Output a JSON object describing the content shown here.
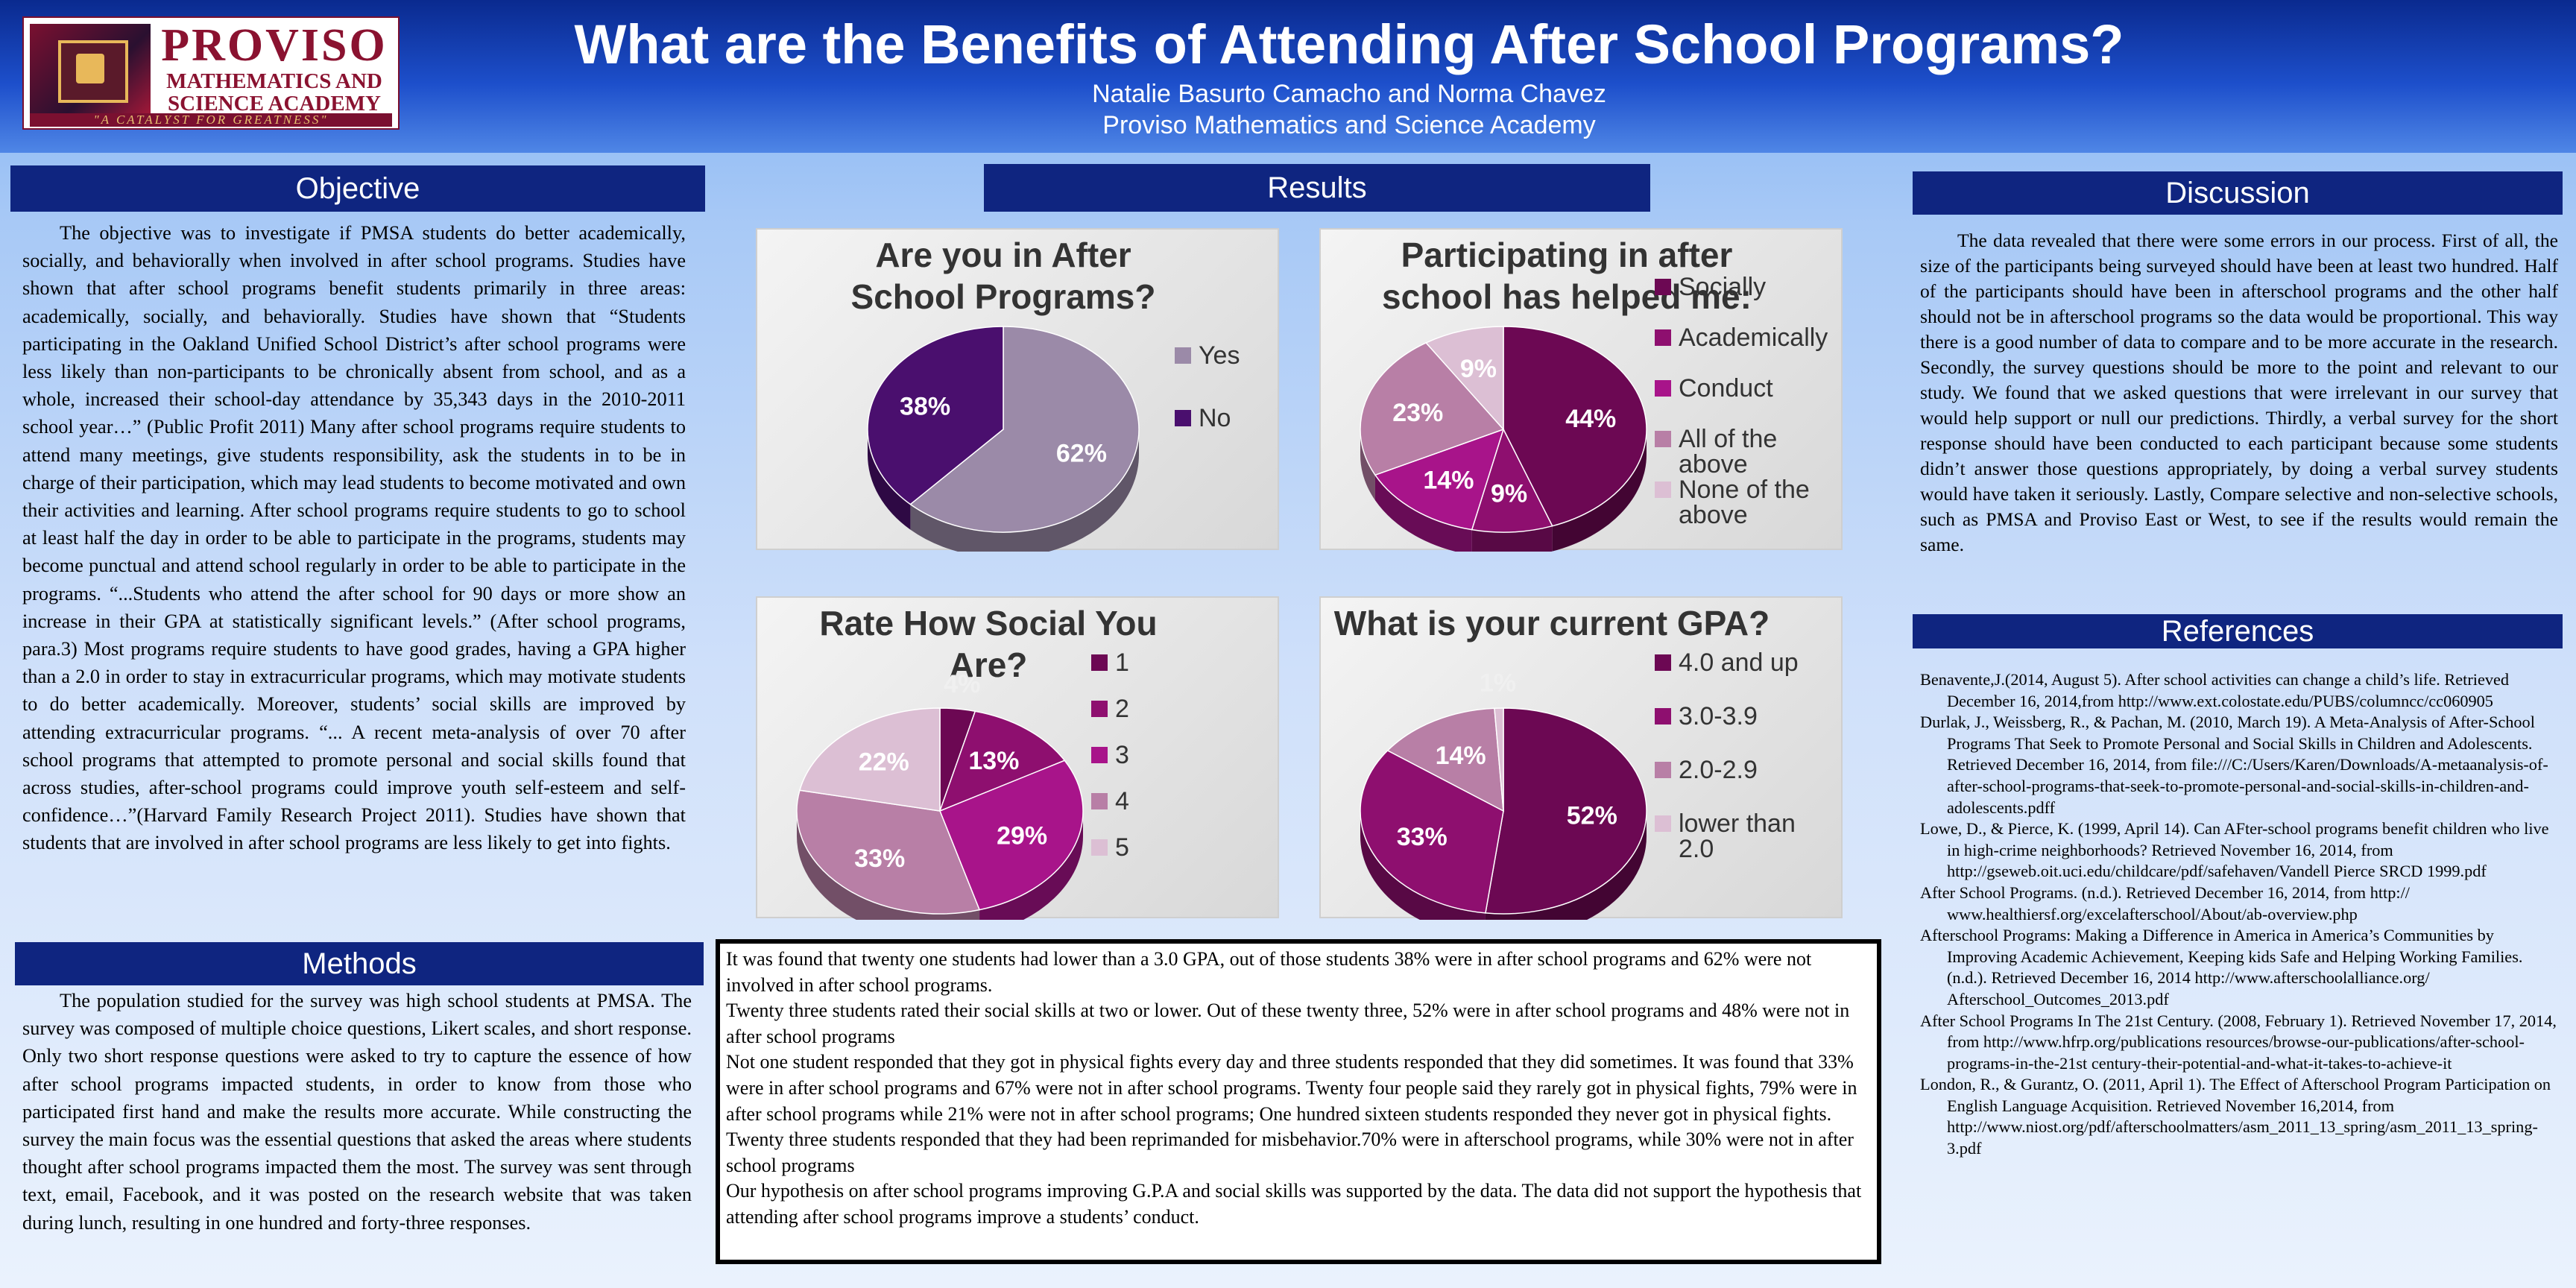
{
  "header": {
    "title": "What are the Benefits of Attending After School Programs?",
    "authors": "Natalie Basurto Camacho and Norma Chavez",
    "affiliation": "Proviso Mathematics and Science Academy",
    "logo": {
      "name1": "PROVISO",
      "name2": "MATHEMATICS AND",
      "name3": "SCIENCE ACADEMY",
      "tagline": "\"A CATALYST FOR GREATNESS\""
    }
  },
  "objective": {
    "heading": "Objective",
    "text": "The objective was to investigate if PMSA students do better academically, socially, and behaviorally when involved in after school programs. Studies have shown that after school programs benefit students primarily in three areas: academically, socially, and behaviorally. Studies have shown that “Students participating in the Oakland Unified School District’s after school programs were less likely than non-participants to be chronically absent from school, and as a whole, increased their school-day attendance by 35,343 days in the 2010-2011 school year…” (Public Profit 2011)  Many after school programs require students to attend many meetings, give students responsibility, ask the students in to be in charge of their participation, which may lead students to become motivated and own their activities and learning. After school programs require students to go to school at least half the day in order to be able to participate in the programs, students may become punctual and attend school regularly in order to be able to participate in the programs. “...Students who attend the after school for 90 days or more show an increase in their GPA at statistically significant levels.” (After school programs, para.3) Most programs require students to have good grades, having a GPA higher than a 2.0 in order to stay in extracurricular programs, which may motivate students to do better academically. Moreover, students’ social skills are improved by attending extracurricular programs. “... A recent meta-analysis of over 70 after school programs that attempted to promote personal and social skills found that across studies, after-school programs could improve youth self-esteem and self-confidence…”(Harvard Family Research Project 2011). Studies have shown that students that are involved in after school programs are less likely to get into fights."
  },
  "methods": {
    "heading": "Methods",
    "text": "The population studied for the survey was high school students at PMSA. The survey was composed of multiple choice questions, Likert scales, and short response.  Only two short response questions were asked to try to capture the essence of how after school programs impacted students, in order to know from those who participated first hand and make the results more accurate. While constructing the survey the main focus was the essential questions that asked the areas where students thought after school programs impacted them the most. The survey was sent through text, email, Facebook, and it was posted on the research website that was taken during lunch, resulting in one hundred and forty-three responses."
  },
  "results": {
    "heading": "Results",
    "paragraphs": [
      "It was found that twenty one students had lower than a 3.0 GPA, out of those students 38% were in after school programs and 62% were not involved in after school programs.",
      "Twenty three students rated their social skills at two or lower. Out of these twenty three, 52% were in after school programs and 48% were not in after school programs",
      "Not one student responded that they got in physical fights every day and three students responded that they did sometimes. It was found that 33% were in after school programs and 67% were not in after school programs. Twenty four people said they rarely got in physical fights, 79% were in after school programs while 21% were not in after school programs; One hundred sixteen students responded they never got in physical fights.",
      "Twenty three students responded that they had been reprimanded for misbehavior.70% were in afterschool programs, while 30% were not in after school programs",
      "Our hypothesis on after school programs improving G.P.A and social skills was supported by the data. The data did not support the hypothesis that attending after school programs improve a students’ conduct."
    ]
  },
  "chart_data": [
    {
      "type": "pie",
      "title": "Are you in After School Programs?",
      "categories": [
        "Yes",
        "No"
      ],
      "values": [
        62,
        38
      ],
      "labels": [
        "62%",
        "38%"
      ],
      "colors": [
        "#9b8aa8",
        "#4a0f6e"
      ],
      "legend": "right"
    },
    {
      "type": "pie",
      "title": "Participating in after school has helped me:",
      "categories": [
        "Socially",
        "Academically",
        "Conduct",
        "All of the above",
        "None of the above"
      ],
      "values": [
        44,
        9,
        14,
        23,
        9
      ],
      "labels": [
        "44%",
        "9%",
        "14%",
        "23%",
        "9%"
      ],
      "colors": [
        "#6c0853",
        "#8e0f6f",
        "#a8148a",
        "#b87fa6",
        "#dcbfd4"
      ],
      "legend": "right"
    },
    {
      "type": "pie",
      "title": "Rate How Social You Are?",
      "categories": [
        "1",
        "2",
        "3",
        "4",
        "5"
      ],
      "values": [
        4,
        13,
        29,
        33,
        22
      ],
      "labels": [
        "4%",
        "13%",
        "29%",
        "33%",
        "22%"
      ],
      "colors": [
        "#6c0853",
        "#8e0f6f",
        "#a8148a",
        "#b87fa6",
        "#dcbfd4"
      ],
      "legend": "right"
    },
    {
      "type": "pie",
      "title": "What is your current GPA?",
      "categories": [
        "4.0 and up",
        "3.0-3.9",
        "2.0-2.9",
        "lower than 2.0"
      ],
      "values": [
        52,
        33,
        14,
        1
      ],
      "labels": [
        "52%",
        "33%",
        "14%",
        "1%"
      ],
      "colors": [
        "#6c0853",
        "#8e0f6f",
        "#b87fa6",
        "#dcbfd4"
      ],
      "legend": "right"
    }
  ],
  "discussion": {
    "heading": "Discussion",
    "text": "The data revealed that there were some errors in our process. First of all, the size of the participants being surveyed should have been at least two hundred. Half of the participants should have been in afterschool programs and the other half should not be in afterschool programs so the data would be proportional. This way there is a good number of data to compare and to be more accurate in the research. Secondly, the survey questions should be more to the point and relevant to our study. We found that we asked questions that were irrelevant in our survey that would help support or null our predictions. Thirdly, a verbal survey for the short response should have been conducted to each participant because some students didn’t answer those questions appropriately, by doing a verbal survey students would have taken it seriously. Lastly, Compare selective and non-selective schools, such as PMSA and Proviso East or West, to see if the results would remain the same."
  },
  "references": {
    "heading": "References",
    "items": [
      "Benavente,J.(2014, August 5). After school activities can change a child’s life. Retrieved December 16, 2014,from http://www.ext.colostate.edu/PUBS/columncc/cc060905",
      "Durlak, J., Weissberg, R., & Pachan, M. (2010, March 19). A Meta-Analysis of After-School Programs That Seek to Promote Personal and Social Skills in Children and Adolescents. Retrieved December 16, 2014, from file:///C:/Users/Karen/Downloads/A-metaanalysis-of-after-school-programs-that-seek-to-promote-personal-and-social-skills-in-children-and-adolescents.pdff",
      "Lowe, D., & Pierce, K. (1999, April 14). Can AFter-school programs benefit children who live in high-crime neighborhoods? Retrieved November 16, 2014, from http://gseweb.oit.uci.edu/childcare/pdf/safehaven/Vandell Pierce SRCD 1999.pdf",
      "After School Programs. (n.d.). Retrieved December 16, 2014, from http:// www.healthiersf.org/excelafterschool/About/ab-overview.php",
      "Afterschool Programs: Making a Difference in America in America’s Communities by Improving Academic Achievement, Keeping kids Safe and Helping Working Families. (n.d.). Retrieved December 16, 2014 http://www.afterschoolalliance.org/ Afterschool_Outcomes_2013.pdf",
      "After School Programs In The 21st Century. (2008, February 1). Retrieved November 17,     2014, from http://www.hfrp.org/publications resources/browse-our-publications/after-school-programs-in-the-21st century-their-potential-and-what-it-takes-to-achieve-it",
      "London, R., & Gurantz, O. (2011, April 1). The Effect of Afterschool Program Participation on English Language Acquisition. Retrieved November 16,2014, from http://www.niost.org/pdf/afterschoolmatters/asm_2011_13_spring/asm_2011_13_spring-3.pdf"
    ]
  }
}
